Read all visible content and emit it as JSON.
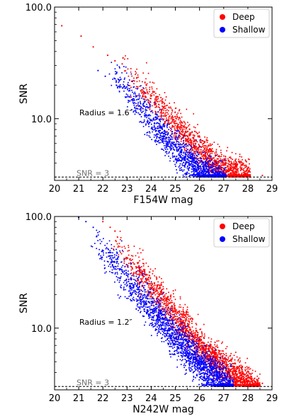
{
  "chart_data": [
    {
      "type": "scatter",
      "xlabel": "F154W mag",
      "ylabel": "SNR",
      "xlim": [
        20,
        29
      ],
      "ylim": [
        2.8,
        100
      ],
      "yscale": "log",
      "xticks": [
        "20",
        "21",
        "22",
        "23",
        "24",
        "25",
        "26",
        "27",
        "28",
        "29"
      ],
      "yticks": [
        "10.0",
        "100.0"
      ],
      "annotation": "Radius = 1.6″",
      "threshold": {
        "value": 3,
        "label": "SNR = 3"
      },
      "legend_position": "top-right",
      "series": [
        {
          "name": "Deep",
          "color": "#ff0000",
          "trend": [
            [
              23.0,
              27.0
            ],
            [
              24.0,
              15.5
            ],
            [
              25.0,
              9.0
            ],
            [
              26.0,
              5.2
            ],
            [
              27.0,
              3.5
            ],
            [
              27.8,
              3.0
            ]
          ],
          "spread": 0.35,
          "mag_range": [
            22.8,
            28.1
          ],
          "points": [
            [
              20.3,
              68
            ],
            [
              21.1,
              55
            ],
            [
              21.6,
              44
            ],
            [
              22.2,
              37
            ],
            [
              22.5,
              33
            ],
            [
              22.8,
              31
            ],
            [
              27.5,
              3.3
            ],
            [
              28.6,
              3.1
            ]
          ]
        },
        {
          "name": "Shallow",
          "color": "#0000ff",
          "trend": [
            [
              22.2,
              26.0
            ],
            [
              23.0,
              18.5
            ],
            [
              24.0,
              9.6
            ],
            [
              25.0,
              5.4
            ],
            [
              26.0,
              3.4
            ],
            [
              26.5,
              3.0
            ]
          ],
          "spread": 0.35,
          "mag_range": [
            22.2,
            27.1
          ],
          "points": [
            [
              21.8,
              27
            ],
            [
              22.1,
              24
            ]
          ]
        }
      ]
    },
    {
      "type": "scatter",
      "xlabel": "N242W mag",
      "ylabel": "SNR",
      "xlim": [
        20,
        29
      ],
      "ylim": [
        2.8,
        100
      ],
      "yscale": "log",
      "xticks": [
        "20",
        "21",
        "22",
        "23",
        "24",
        "25",
        "26",
        "27",
        "28",
        "29"
      ],
      "yticks": [
        "10.0",
        "100.0"
      ],
      "annotation": "Radius = 1.2″",
      "threshold": {
        "value": 3,
        "label": "SNR = 3"
      },
      "legend_position": "top-right",
      "series": [
        {
          "name": "Deep",
          "color": "#ff0000",
          "trend": [
            [
              22.0,
              80.0
            ],
            [
              23.0,
              42.0
            ],
            [
              24.0,
              24.0
            ],
            [
              25.0,
              13.0
            ],
            [
              26.0,
              7.0
            ],
            [
              27.0,
              4.4
            ],
            [
              28.0,
              3.1
            ]
          ],
          "spread": 0.35,
          "mag_range": [
            22.3,
            28.5
          ],
          "points": [
            [
              22.0,
              90
            ],
            [
              22.3,
              80
            ],
            [
              22.5,
              74
            ],
            [
              28.6,
              3.2
            ]
          ]
        },
        {
          "name": "Shallow",
          "color": "#0000ff",
          "trend": [
            [
              21.0,
              100.0
            ],
            [
              22.0,
              50.0
            ],
            [
              23.0,
              27.0
            ],
            [
              24.0,
              15.0
            ],
            [
              25.0,
              8.5
            ],
            [
              26.0,
              4.8
            ],
            [
              27.0,
              3.1
            ]
          ],
          "spread": 0.4,
          "mag_range": [
            21.5,
            27.4
          ],
          "points": [
            [
              21.0,
              98
            ],
            [
              21.3,
              90
            ],
            [
              21.6,
              80
            ]
          ]
        }
      ]
    }
  ]
}
